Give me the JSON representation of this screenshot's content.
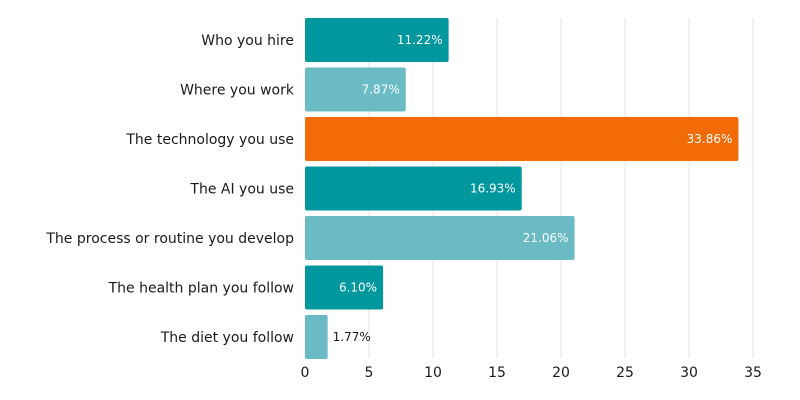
{
  "chart_data": {
    "type": "bar",
    "orientation": "horizontal",
    "title": "",
    "xlabel": "",
    "ylabel": "",
    "categories": [
      "Who you hire",
      "Where you work",
      "The technology you use",
      "The AI you use",
      "The process or routine you develop",
      "The health plan you follow",
      "The diet you follow"
    ],
    "values": [
      11.22,
      7.87,
      33.86,
      16.93,
      21.06,
      6.1,
      1.77
    ],
    "value_labels": [
      "11.22%",
      "7.87%",
      "33.86%",
      "16.93%",
      "21.06%",
      "6.10%",
      "1.77%"
    ],
    "bar_colors": [
      "#00989e",
      "#6abbc4",
      "#f26b06",
      "#00989e",
      "#6abbc4",
      "#00989e",
      "#6abbc4"
    ],
    "xlim": [
      0,
      35
    ],
    "xticks": [
      0,
      5,
      10,
      15,
      20,
      25,
      30,
      35
    ],
    "grid": "vertical",
    "legend": "none"
  }
}
